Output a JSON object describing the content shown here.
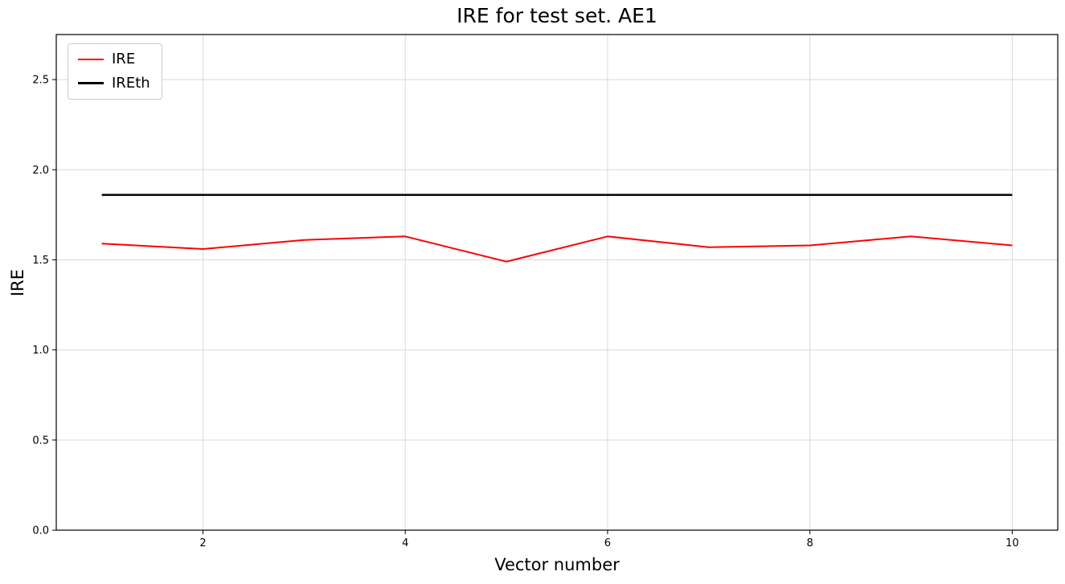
{
  "page": {
    "background_color": "#ffffff"
  },
  "chart_data": {
    "type": "line",
    "title": "IRE for test set. AE1",
    "xlabel": "Vector number",
    "ylabel": "IRE",
    "x": [
      1,
      2,
      3,
      4,
      5,
      6,
      7,
      8,
      9,
      10
    ],
    "series": [
      {
        "name": "IRE",
        "color": "#ff0000",
        "line_width": 2,
        "values": [
          1.59,
          1.56,
          1.61,
          1.63,
          1.49,
          1.63,
          1.57,
          1.58,
          1.63,
          1.58
        ]
      },
      {
        "name": "IREth",
        "color": "#000000",
        "line_width": 2.5,
        "values": [
          1.86,
          1.86,
          1.86,
          1.86,
          1.86,
          1.86,
          1.86,
          1.86,
          1.86,
          1.86
        ]
      }
    ],
    "xlim": [
      0.55,
      10.45
    ],
    "ylim": [
      0,
      2.75
    ],
    "xticks": [
      2,
      4,
      6,
      8,
      10
    ],
    "xtick_labels": [
      "2",
      "4",
      "6",
      "8",
      "10"
    ],
    "yticks": [
      0.0,
      0.5,
      1.0,
      1.5,
      2.0,
      2.5
    ],
    "ytick_labels": [
      "0.0",
      "0.5",
      "1.0",
      "1.5",
      "2.0",
      "2.5"
    ],
    "grid": true,
    "grid_color": "#d9d9d9",
    "legend_position": "upper left"
  }
}
